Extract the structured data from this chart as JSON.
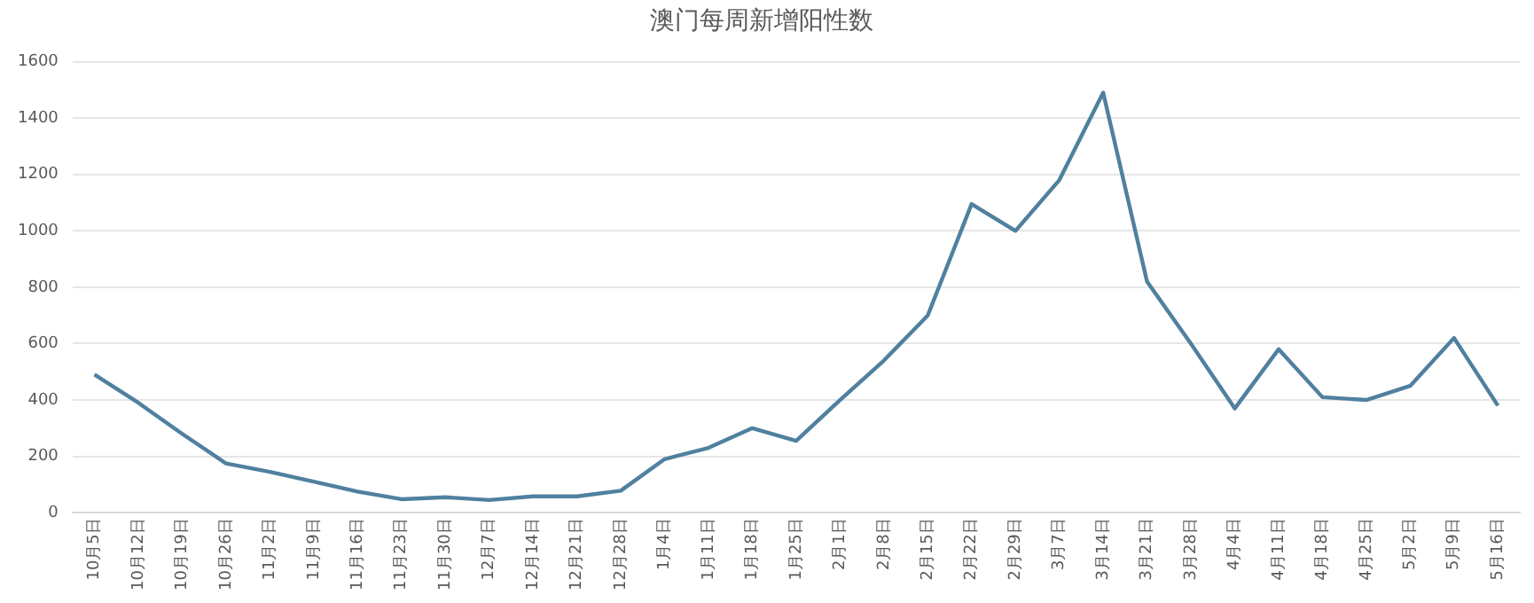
{
  "chart_data": {
    "type": "line",
    "title": "澳门每周新增阳性数",
    "categories": [
      "10月5日",
      "10月12日",
      "10月19日",
      "10月26日",
      "11月2日",
      "11月9日",
      "11月16日",
      "11月23日",
      "11月30日",
      "12月7日",
      "12月14日",
      "12月21日",
      "12月28日",
      "1月4日",
      "1月11日",
      "1月18日",
      "1月25日",
      "2月1日",
      "2月8日",
      "2月15日",
      "2月22日",
      "2月29日",
      "3月7日",
      "3月14日",
      "3月21日",
      "3月28日",
      "4月4日",
      "4月11日",
      "4月18日",
      "4月25日",
      "5月2日",
      "5月9日",
      "5月16日"
    ],
    "series": [
      {
        "color": "#50809f",
        "values": [
          490,
          390,
          280,
          175,
          145,
          110,
          75,
          48,
          55,
          45,
          58,
          58,
          78,
          190,
          230,
          300,
          255,
          400,
          540,
          700,
          1095,
          1000,
          1180,
          1490,
          820,
          600,
          370,
          580,
          410,
          400,
          450,
          620,
          380
        ]
      }
    ],
    "ylim": [
      0,
      1600
    ],
    "yticks": [
      0,
      200,
      400,
      600,
      800,
      1000,
      1200,
      1400,
      1600
    ],
    "grid": "y",
    "legend": false,
    "marker": "none",
    "line_style": "solid"
  }
}
